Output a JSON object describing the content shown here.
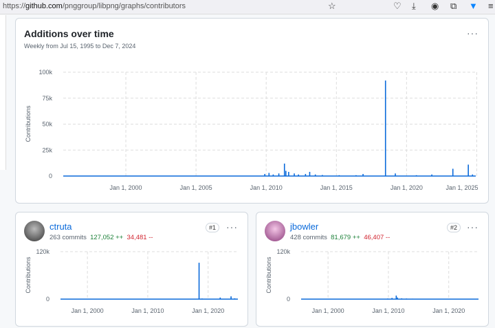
{
  "browser": {
    "url_host": "https://",
    "url_domain": "github.com",
    "url_path": "/pnggroup/libpng/graphs/contributors"
  },
  "main": {
    "title": "Additions over time",
    "subtitle": "Weekly from Jul 15, 1995 to Dec 7, 2024",
    "menu": "···"
  },
  "contributors": [
    {
      "name": "ctruta",
      "commits": "263 commits",
      "additions": "127,052 ++",
      "deletions": "34,481 --",
      "rank": "#1",
      "menu": "···"
    },
    {
      "name": "jbowler",
      "commits": "428 commits",
      "additions": "81,679 ++",
      "deletions": "46,407 --",
      "rank": "#2",
      "menu": "···"
    }
  ],
  "colors": {
    "line": "#0969da",
    "add": "#1a7f37",
    "del": "#d1242f"
  },
  "chart_data": [
    {
      "type": "area",
      "ylabel": "Contributions",
      "ylim": [
        0,
        100000
      ],
      "yticks": [
        "0",
        "25k",
        "50k",
        "75k",
        "100k"
      ],
      "xticks": [
        "Jan 1, 2000",
        "Jan 1, 2005",
        "Jan 1, 2010",
        "Jan 1, 2015",
        "Jan 1, 2020",
        "Jan 1, 2025"
      ],
      "xlim": [
        1995.54,
        2024.93
      ],
      "points": [
        [
          2009.9,
          2000
        ],
        [
          2010.2,
          3000
        ],
        [
          2010.5,
          1500
        ],
        [
          2010.9,
          2500
        ],
        [
          2011.3,
          12000
        ],
        [
          2011.4,
          5000
        ],
        [
          2011.6,
          4000
        ],
        [
          2012.0,
          2500
        ],
        [
          2012.3,
          1500
        ],
        [
          2012.8,
          2000
        ],
        [
          2013.1,
          4000
        ],
        [
          2013.5,
          1500
        ],
        [
          2014.0,
          1000
        ],
        [
          2015.2,
          800
        ],
        [
          2016.4,
          800
        ],
        [
          2016.9,
          2000
        ],
        [
          2018.5,
          92000
        ],
        [
          2019.2,
          2500
        ],
        [
          2020.7,
          800
        ],
        [
          2021.8,
          1500
        ],
        [
          2023.3,
          7000
        ],
        [
          2024.4,
          11000
        ],
        [
          2024.7,
          1500
        ]
      ]
    },
    {
      "type": "area",
      "ylabel": "Contributions",
      "ylim": [
        0,
        120000
      ],
      "yticks": [
        "0",
        "120k"
      ],
      "xticks": [
        "Jan 1, 2000",
        "Jan 1, 2010",
        "Jan 1, 2020"
      ],
      "xlim": [
        1995.54,
        2024.93
      ],
      "points": [
        [
          2018.5,
          92000
        ],
        [
          2019.0,
          1500
        ],
        [
          2022.0,
          4000
        ],
        [
          2023.8,
          7000
        ],
        [
          2024.4,
          2000
        ]
      ]
    },
    {
      "type": "area",
      "ylabel": "Contributions",
      "ylim": [
        0,
        120000
      ],
      "yticks": [
        "0",
        "120k"
      ],
      "xticks": [
        "Jan 1, 2000",
        "Jan 1, 2010",
        "Jan 1, 2020"
      ],
      "xlim": [
        1995.54,
        2024.93
      ],
      "points": [
        [
          2009.9,
          1500
        ],
        [
          2010.6,
          3000
        ],
        [
          2011.3,
          9000
        ],
        [
          2011.5,
          4000
        ],
        [
          2012.2,
          2000
        ],
        [
          2013.0,
          1500
        ],
        [
          2014.0,
          1000
        ],
        [
          2015.5,
          600
        ]
      ]
    }
  ]
}
